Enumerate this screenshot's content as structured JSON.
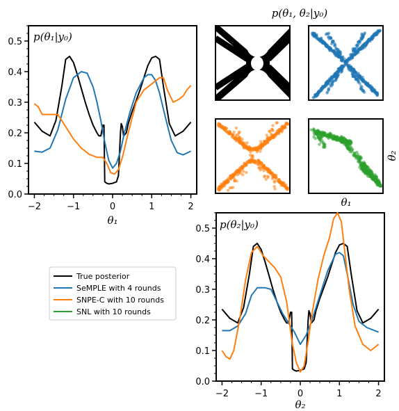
{
  "chart_data": [
    {
      "type": "line",
      "title": "p(θ₁|y₀)",
      "xlabel": "θ₁",
      "ylabel": "",
      "xlim": [
        -2.15,
        2.15
      ],
      "ylim": [
        0,
        0.55
      ],
      "xticks": [
        -2,
        -1,
        0,
        1,
        2
      ],
      "xtick_labels": [
        "−2",
        "−1",
        "0",
        "1",
        "2"
      ],
      "yticks": [
        0,
        0.1,
        0.2,
        0.3,
        0.4,
        0.5
      ],
      "ytick_labels": [
        "0.0",
        "0.1",
        "0.2",
        "0.3",
        "0.4",
        "0.5"
      ],
      "series": [
        {
          "name": "True posterior",
          "color": "#000000",
          "x": [
            -2.0,
            -1.8,
            -1.6,
            -1.45,
            -1.3,
            -1.2,
            -1.1,
            -1.0,
            -0.9,
            -0.8,
            -0.7,
            -0.6,
            -0.5,
            -0.4,
            -0.35,
            -0.3,
            -0.25,
            -0.22,
            -0.2,
            -0.15,
            -0.1,
            0.0,
            0.1,
            0.15,
            0.2,
            0.22,
            0.25,
            0.28,
            0.35,
            0.4,
            0.5,
            0.6,
            0.7,
            0.8,
            0.9,
            1.0,
            1.1,
            1.2,
            1.3,
            1.45,
            1.6,
            1.8,
            2.0
          ],
          "y": [
            0.235,
            0.205,
            0.19,
            0.24,
            0.35,
            0.44,
            0.45,
            0.43,
            0.39,
            0.345,
            0.3,
            0.26,
            0.225,
            0.2,
            0.19,
            0.19,
            0.225,
            0.225,
            0.04,
            0.035,
            0.033,
            0.035,
            0.04,
            0.06,
            0.2,
            0.23,
            0.22,
            0.19,
            0.2,
            0.23,
            0.27,
            0.305,
            0.34,
            0.38,
            0.42,
            0.445,
            0.45,
            0.44,
            0.35,
            0.23,
            0.19,
            0.205,
            0.235
          ]
        },
        {
          "name": "SeMPLE with 4 rounds",
          "color": "#1f77b4",
          "x": [
            -2.0,
            -1.8,
            -1.6,
            -1.4,
            -1.2,
            -1.0,
            -0.8,
            -0.65,
            -0.5,
            -0.4,
            -0.3,
            -0.2,
            -0.1,
            0.0,
            0.1,
            0.2,
            0.3,
            0.45,
            0.6,
            0.8,
            0.9,
            1.0,
            1.1,
            1.2,
            1.35,
            1.5,
            1.65,
            1.8,
            2.0
          ],
          "y": [
            0.14,
            0.137,
            0.15,
            0.21,
            0.31,
            0.38,
            0.4,
            0.395,
            0.35,
            0.3,
            0.24,
            0.17,
            0.11,
            0.085,
            0.1,
            0.14,
            0.2,
            0.27,
            0.33,
            0.38,
            0.39,
            0.39,
            0.37,
            0.33,
            0.25,
            0.175,
            0.135,
            0.128,
            0.14
          ]
        },
        {
          "name": "SNPE-C with 10 rounds",
          "color": "#ff7f0e",
          "x": [
            -2.0,
            -1.9,
            -1.8,
            -1.6,
            -1.4,
            -1.2,
            -1.0,
            -0.8,
            -0.6,
            -0.4,
            -0.25,
            -0.15,
            -0.05,
            0.05,
            0.15,
            0.25,
            0.4,
            0.6,
            0.8,
            1.0,
            1.1,
            1.2,
            1.3,
            1.4,
            1.55,
            1.7,
            1.8,
            1.9,
            2.0
          ],
          "y": [
            0.295,
            0.285,
            0.26,
            0.26,
            0.26,
            0.22,
            0.18,
            0.15,
            0.13,
            0.12,
            0.12,
            0.1,
            0.07,
            0.065,
            0.08,
            0.12,
            0.2,
            0.3,
            0.34,
            0.36,
            0.37,
            0.38,
            0.38,
            0.34,
            0.3,
            0.31,
            0.32,
            0.34,
            0.355
          ]
        }
      ]
    },
    {
      "type": "scatter",
      "title": "p(θ₁, θ₂|y₀)",
      "xlabel": "θ₁",
      "ylabel": "θ₂",
      "panels": [
        {
          "name": "True posterior",
          "color": "#000000",
          "style": "filled X-shaped density"
        },
        {
          "name": "SeMPLE with 4 rounds",
          "color": "#1f77b4",
          "style": "samples along four diagonal arms"
        },
        {
          "name": "SNPE-C with 10 rounds",
          "color": "#ff7f0e",
          "style": "samples along X-shaped arms"
        },
        {
          "name": "SNL with 10 rounds",
          "color": "#2ca02c",
          "style": "samples on one upper-left to lower-right arm"
        }
      ]
    },
    {
      "type": "line",
      "title": "p(θ₂|y₀)",
      "xlabel": "θ₂",
      "ylabel": "",
      "xlim": [
        -2.15,
        2.15
      ],
      "ylim": [
        0,
        0.55
      ],
      "xticks": [
        -2,
        -1,
        0,
        1,
        2
      ],
      "xtick_labels": [
        "−2",
        "−1",
        "0",
        "1",
        "2"
      ],
      "yticks": [
        0,
        0.1,
        0.2,
        0.3,
        0.4,
        0.5
      ],
      "ytick_labels": [
        "0.0",
        "0.1",
        "0.2",
        "0.3",
        "0.4",
        "0.5"
      ],
      "series": [
        {
          "name": "True posterior",
          "color": "#000000",
          "x": [
            -2.0,
            -1.8,
            -1.6,
            -1.45,
            -1.3,
            -1.2,
            -1.1,
            -1.0,
            -0.9,
            -0.8,
            -0.7,
            -0.6,
            -0.5,
            -0.4,
            -0.35,
            -0.3,
            -0.25,
            -0.22,
            -0.2,
            -0.15,
            -0.1,
            0.0,
            0.1,
            0.15,
            0.2,
            0.22,
            0.25,
            0.28,
            0.35,
            0.4,
            0.5,
            0.6,
            0.7,
            0.8,
            0.9,
            1.0,
            1.1,
            1.2,
            1.3,
            1.45,
            1.6,
            1.8,
            2.0
          ],
          "y": [
            0.235,
            0.205,
            0.19,
            0.24,
            0.35,
            0.44,
            0.45,
            0.43,
            0.39,
            0.345,
            0.3,
            0.26,
            0.225,
            0.2,
            0.19,
            0.19,
            0.225,
            0.225,
            0.04,
            0.035,
            0.033,
            0.035,
            0.04,
            0.06,
            0.2,
            0.23,
            0.22,
            0.19,
            0.2,
            0.23,
            0.27,
            0.305,
            0.34,
            0.38,
            0.42,
            0.445,
            0.45,
            0.44,
            0.35,
            0.23,
            0.19,
            0.205,
            0.235
          ]
        },
        {
          "name": "SeMPLE with 4 rounds",
          "color": "#1f77b4",
          "x": [
            -2.0,
            -1.8,
            -1.6,
            -1.4,
            -1.25,
            -1.1,
            -0.9,
            -0.75,
            -0.6,
            -0.45,
            -0.3,
            -0.15,
            0.0,
            0.15,
            0.3,
            0.5,
            0.7,
            0.9,
            1.0,
            1.1,
            1.2,
            1.35,
            1.5,
            1.7,
            2.0
          ],
          "y": [
            0.165,
            0.165,
            0.18,
            0.22,
            0.28,
            0.305,
            0.305,
            0.3,
            0.26,
            0.22,
            0.19,
            0.16,
            0.12,
            0.15,
            0.2,
            0.28,
            0.36,
            0.415,
            0.42,
            0.41,
            0.35,
            0.25,
            0.195,
            0.175,
            0.16
          ]
        },
        {
          "name": "SNPE-C with 10 rounds",
          "color": "#ff7f0e",
          "x": [
            -2.0,
            -1.9,
            -1.8,
            -1.7,
            -1.55,
            -1.4,
            -1.25,
            -1.1,
            -0.95,
            -0.8,
            -0.65,
            -0.5,
            -0.35,
            -0.2,
            -0.1,
            0.0,
            0.1,
            0.2,
            0.3,
            0.45,
            0.6,
            0.75,
            0.85,
            0.95,
            1.05,
            1.15,
            1.25,
            1.4,
            1.6,
            1.8,
            1.9,
            2.0
          ],
          "y": [
            0.1,
            0.08,
            0.072,
            0.1,
            0.2,
            0.33,
            0.42,
            0.44,
            0.41,
            0.39,
            0.37,
            0.34,
            0.26,
            0.12,
            0.06,
            0.03,
            0.05,
            0.13,
            0.22,
            0.33,
            0.41,
            0.47,
            0.53,
            0.55,
            0.52,
            0.41,
            0.3,
            0.18,
            0.12,
            0.1,
            0.11,
            0.12
          ]
        }
      ]
    }
  ],
  "legend": {
    "entries": [
      {
        "label": "True posterior",
        "color": "#000000"
      },
      {
        "label": "SeMPLE with 4 rounds",
        "color": "#1f77b4"
      },
      {
        "label": "SNPE-C with 10 rounds",
        "color": "#ff7f0e"
      },
      {
        "label": "SNL with 10 rounds",
        "color": "#2ca02c"
      }
    ]
  }
}
